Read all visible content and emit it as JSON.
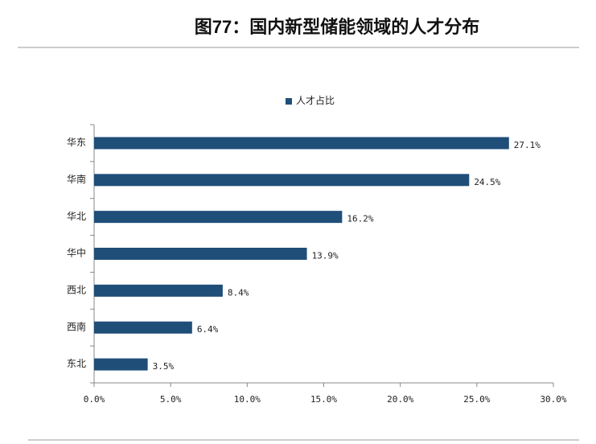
{
  "chart_data": {
    "type": "bar",
    "orientation": "horizontal",
    "title": "图77：国内新型储能领域的人才分布",
    "categories": [
      "华东",
      "华南",
      "华北",
      "华中",
      "西北",
      "西南",
      "东北"
    ],
    "series": [
      {
        "name": "人才占比",
        "color": "#1f4e79",
        "values": [
          27.1,
          24.5,
          16.2,
          13.9,
          8.4,
          6.4,
          3.5
        ],
        "value_labels": [
          "27.1%",
          "24.5%",
          "16.2%",
          "13.9%",
          "8.4%",
          "6.4%",
          "3.5%"
        ]
      }
    ],
    "xlim": [
      0,
      30
    ],
    "xticks": [
      {
        "value": 0,
        "label": "0.0%"
      },
      {
        "value": 5,
        "label": "5.0%"
      },
      {
        "value": 10,
        "label": "10.0%"
      },
      {
        "value": 15,
        "label": "15.0%"
      },
      {
        "value": 20,
        "label": "20.0%"
      },
      {
        "value": 25,
        "label": "25.0%"
      },
      {
        "value": 30,
        "label": "30.0%"
      }
    ],
    "legend": "top",
    "grid": false
  }
}
